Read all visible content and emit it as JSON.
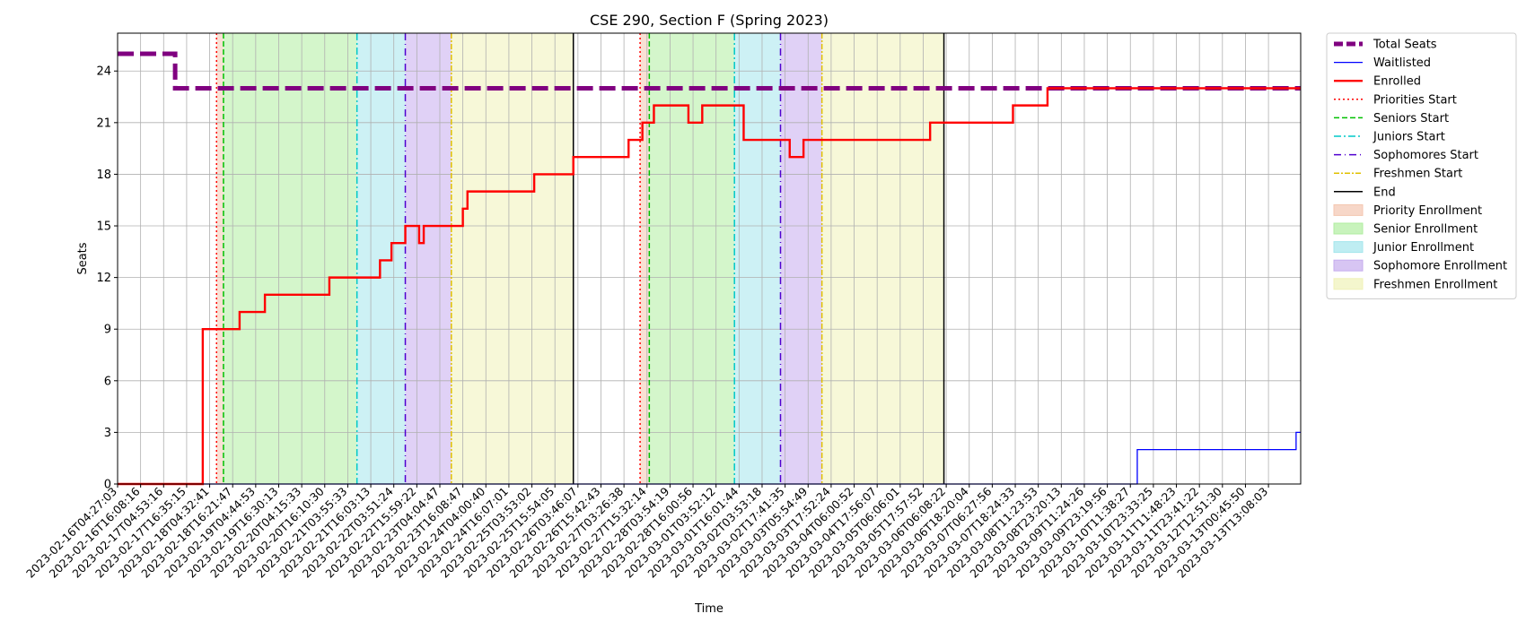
{
  "chart_data": {
    "type": "line",
    "title": "CSE 290, Section F (Spring 2023)",
    "xlabel": "Time",
    "ylabel": "Seats",
    "ylim": [
      0,
      26.2
    ],
    "yticks": [
      0,
      3,
      6,
      9,
      12,
      15,
      18,
      21,
      24
    ],
    "grid": true,
    "legend_position": "outside right, top",
    "x_tick_labels": [
      "2023-02-16T04:27:03",
      "2023-02-16T16:08:16",
      "2023-02-17T04:53:16",
      "2023-02-17T16:35:15",
      "2023-02-18T04:32:41",
      "2023-02-18T16:21:47",
      "2023-02-19T04:44:53",
      "2023-02-19T16:30:13",
      "2023-02-20T04:15:33",
      "2023-02-20T16:10:30",
      "2023-02-21T03:55:33",
      "2023-02-21T16:03:13",
      "2023-02-22T03:51:24",
      "2023-02-22T15:59:22",
      "2023-02-23T04:04:47",
      "2023-02-23T16:08:47",
      "2023-02-24T04:00:40",
      "2023-02-24T16:07:01",
      "2023-02-25T03:53:02",
      "2023-02-25T15:54:05",
      "2023-02-26T03:46:07",
      "2023-02-26T15:42:43",
      "2023-02-27T03:26:38",
      "2023-02-27T15:32:14",
      "2023-02-28T03:54:19",
      "2023-02-28T16:00:56",
      "2023-03-01T03:52:12",
      "2023-03-01T16:01:44",
      "2023-03-02T03:53:18",
      "2023-03-02T17:41:35",
      "2023-03-03T05:54:49",
      "2023-03-03T17:52:24",
      "2023-03-04T06:00:52",
      "2023-03-04T17:56:07",
      "2023-03-05T06:06:01",
      "2023-03-05T17:57:52",
      "2023-03-06T06:08:22",
      "2023-03-06T18:20:04",
      "2023-03-07T06:27:56",
      "2023-03-07T18:24:33",
      "2023-03-08T11:23:53",
      "2023-03-08T23:20:13",
      "2023-03-09T11:24:26",
      "2023-03-09T23:19:56",
      "2023-03-10T11:38:27",
      "2023-03-10T23:33:25",
      "2023-03-11T11:48:23",
      "2023-03-11T23:41:22",
      "2023-03-12T12:51:30",
      "2023-03-13T00:45:50",
      "2023-03-13T13:08:03"
    ],
    "x_domain": [
      0,
      51.4
    ],
    "series": [
      {
        "name": "Total Seats",
        "color": "#800080",
        "style": "dashed-thick",
        "x": [
          0,
          2.5,
          2.5,
          51.4
        ],
        "y": [
          25,
          25,
          23,
          23
        ]
      },
      {
        "name": "Waitlisted",
        "color": "#0000ff",
        "style": "solid-thin",
        "x": [
          0,
          44.3,
          44.3,
          51.2,
          51.2,
          51.4
        ],
        "y": [
          0,
          0,
          2,
          2,
          3,
          3
        ]
      },
      {
        "name": "Enrolled",
        "color": "#ff0000",
        "style": "solid-thick",
        "x": [
          0,
          3.7,
          3.7,
          5.3,
          5.3,
          6.4,
          6.4,
          9.2,
          9.2,
          11.4,
          11.4,
          11.9,
          11.9,
          12.5,
          12.5,
          13.1,
          13.1,
          13.3,
          13.3,
          15.0,
          15.0,
          15.2,
          15.2,
          18.1,
          18.1,
          19.8,
          19.8,
          22.2,
          22.2,
          22.8,
          22.8,
          23.3,
          23.3,
          24.8,
          24.8,
          25.4,
          25.4,
          27.2,
          27.2,
          29.2,
          29.2,
          29.8,
          29.8,
          35.3,
          35.3,
          38.9,
          38.9,
          40.4,
          40.4,
          51.4
        ],
        "y": [
          0,
          0,
          9,
          9,
          10,
          10,
          11,
          11,
          12,
          12,
          13,
          13,
          14,
          14,
          15,
          15,
          14,
          14,
          15,
          15,
          16,
          16,
          17,
          17,
          18,
          18,
          19,
          19,
          20,
          20,
          21,
          21,
          22,
          22,
          21,
          21,
          22,
          22,
          20,
          20,
          19,
          19,
          20,
          20,
          21,
          21,
          22,
          22,
          23,
          23
        ]
      }
    ],
    "markers": [
      {
        "name": "Priorities Start",
        "color": "#ff0000",
        "dash": "2,3",
        "x": [
          4.3,
          22.7
        ]
      },
      {
        "name": "Seniors Start",
        "color": "#00c000",
        "dash": "6,3",
        "x": [
          4.6,
          23.1
        ]
      },
      {
        "name": "Juniors Start",
        "color": "#00c8c8",
        "dash": "8,3,2,3",
        "x": [
          10.4,
          26.8
        ]
      },
      {
        "name": "Sophomores Start",
        "color": "#5000d0",
        "dash": "8,4,1,4",
        "x": [
          12.5,
          28.8
        ]
      },
      {
        "name": "Freshmen Start",
        "color": "#e0c000",
        "dash": "6,2,2,2",
        "x": [
          14.5,
          30.6
        ]
      },
      {
        "name": "End",
        "color": "#000000",
        "dash": "",
        "x": [
          19.8,
          35.9
        ]
      }
    ],
    "periods": [
      {
        "name": "Priority Enrollment",
        "color": "#f4c6b0",
        "ranges": [
          [
            4.3,
            4.6
          ],
          [
            22.7,
            23.1
          ]
        ]
      },
      {
        "name": "Senior Enrollment",
        "color": "#b0eea0",
        "ranges": [
          [
            4.6,
            10.4
          ],
          [
            23.1,
            26.8
          ]
        ]
      },
      {
        "name": "Junior Enrollment",
        "color": "#a4e6ec",
        "ranges": [
          [
            10.4,
            12.5
          ],
          [
            26.8,
            28.8
          ]
        ]
      },
      {
        "name": "Sophomore Enrollment",
        "color": "#c6acee",
        "ranges": [
          [
            12.5,
            14.5
          ],
          [
            28.8,
            30.6
          ]
        ]
      },
      {
        "name": "Freshmen Enrollment",
        "color": "#f0f2b8",
        "ranges": [
          [
            14.5,
            19.8
          ],
          [
            30.6,
            35.9
          ]
        ]
      }
    ]
  }
}
